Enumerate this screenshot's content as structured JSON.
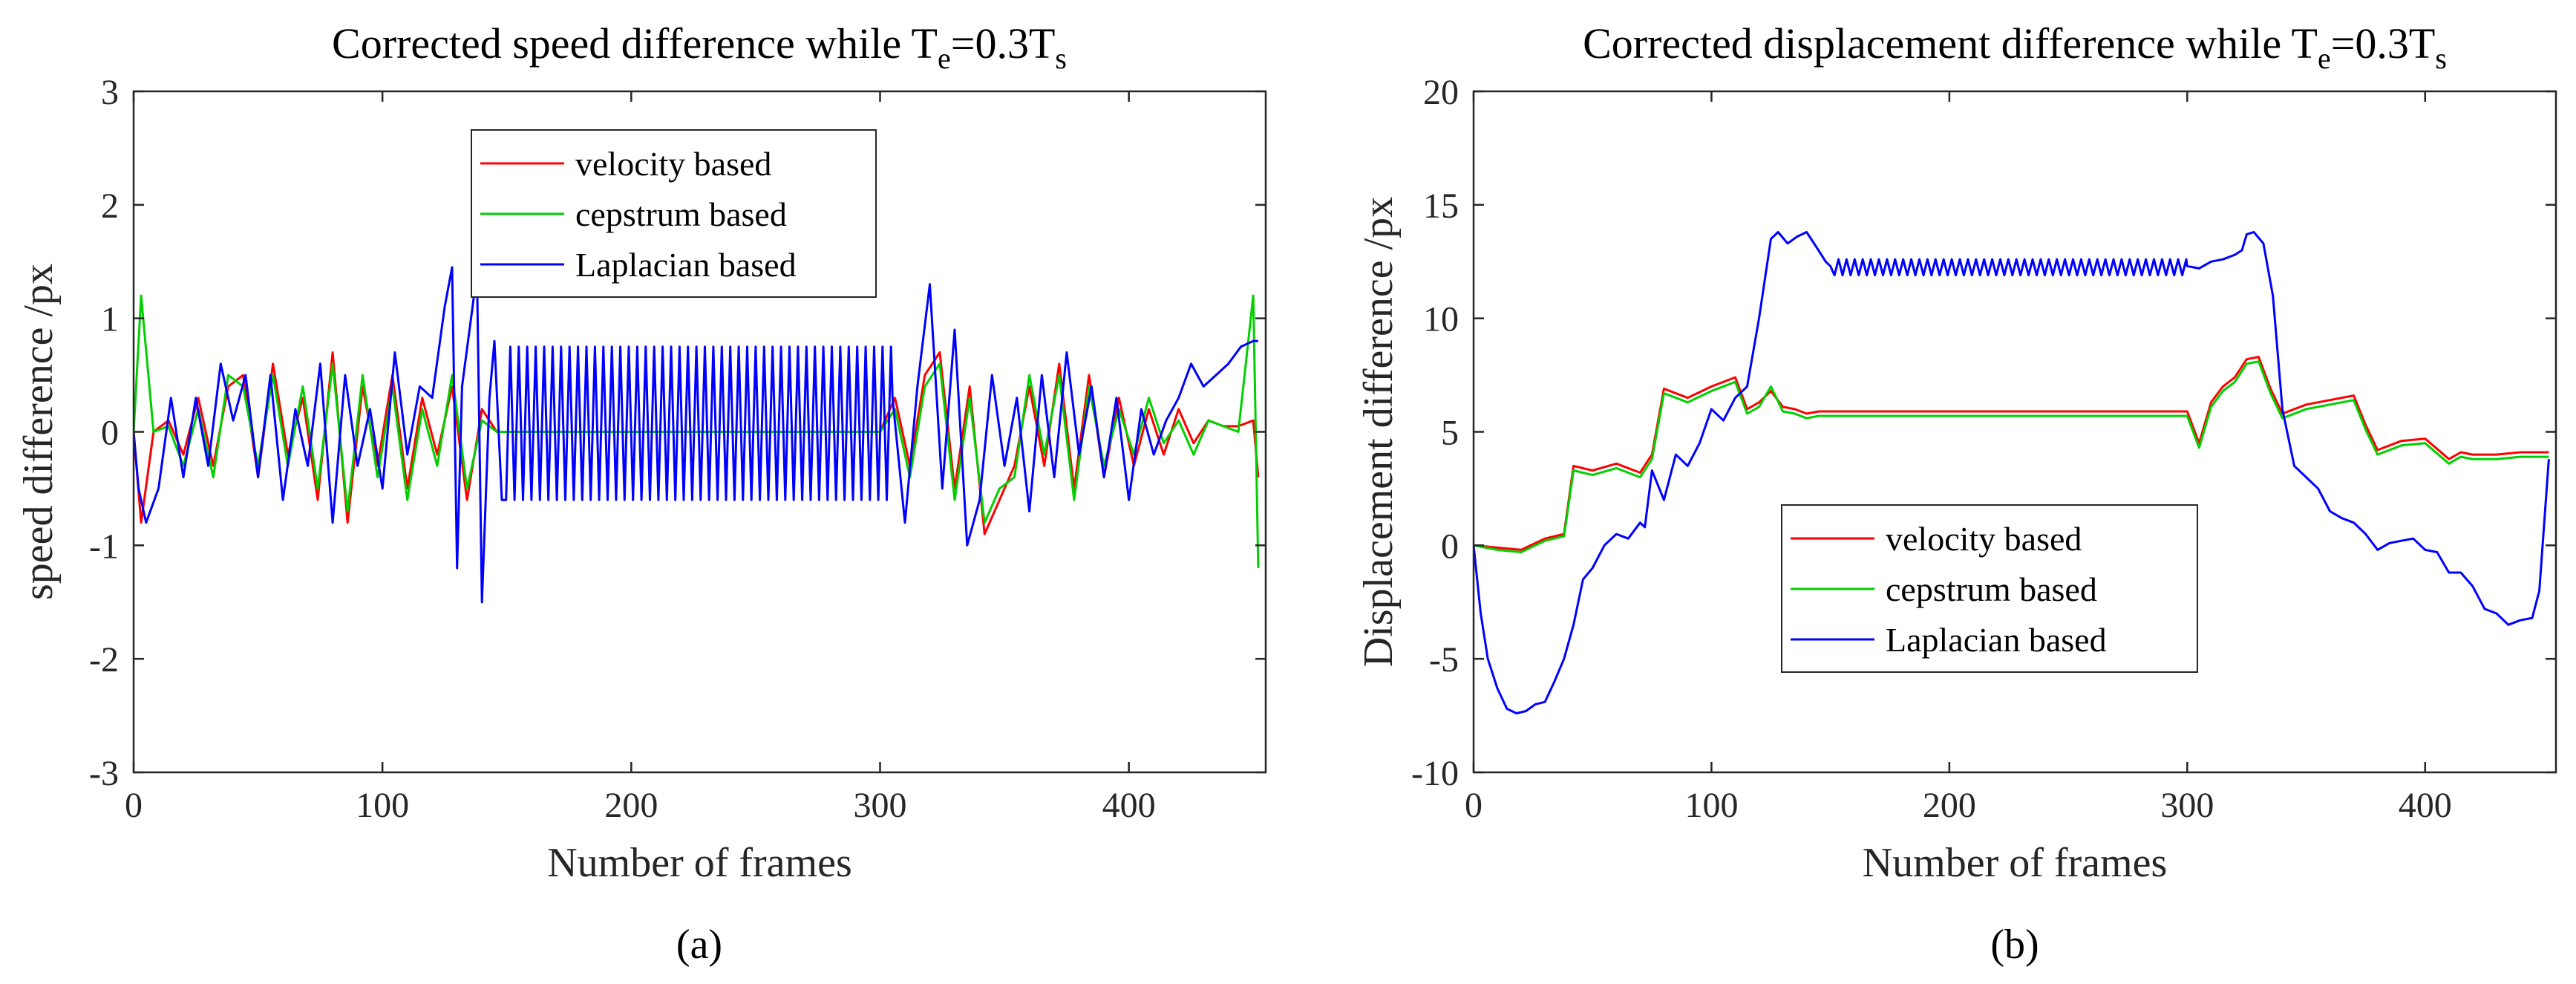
{
  "chart_data": [
    {
      "type": "line",
      "title": "Corrected speed difference while T",
      "title_sub1": "e",
      "title_mid": "=0.3T",
      "title_sub2": "s",
      "xlabel": "Number of frames",
      "ylabel": "speed difference /px",
      "caption": "(a)",
      "xlim": [
        0,
        455
      ],
      "ylim": [
        -3,
        3
      ],
      "xticks": [
        0,
        100,
        200,
        300,
        400
      ],
      "yticks": [
        -3,
        -2,
        -1,
        0,
        1,
        2,
        3
      ],
      "xtick_labels": [
        "0",
        "100",
        "200",
        "300",
        "400"
      ],
      "ytick_labels": [
        "-3",
        "-2",
        "-1",
        "0",
        "1",
        "2",
        "3"
      ],
      "legend_position": "top-center",
      "series": [
        {
          "name": "velocity based",
          "color": "#ff0000",
          "x": [
            0,
            3,
            8,
            14,
            20,
            26,
            32,
            38,
            44,
            50,
            56,
            62,
            68,
            74,
            80,
            86,
            92,
            98,
            104,
            110,
            116,
            122,
            128,
            134,
            140,
            146,
            200,
            260,
            300,
            306,
            312,
            318,
            324,
            330,
            336,
            342,
            348,
            354,
            360,
            366,
            372,
            378,
            384,
            390,
            396,
            402,
            408,
            414,
            420,
            426,
            432,
            438,
            444,
            450,
            452
          ],
          "y": [
            0,
            -0.8,
            0,
            0.1,
            -0.2,
            0.3,
            -0.3,
            0.4,
            0.5,
            -0.4,
            0.6,
            -0.2,
            0.3,
            -0.6,
            0.7,
            -0.8,
            0.4,
            -0.3,
            0.5,
            -0.5,
            0.3,
            -0.2,
            0.4,
            -0.6,
            0.2,
            0,
            0,
            0,
            0,
            0.3,
            -0.3,
            0.5,
            0.7,
            -0.5,
            0.4,
            -0.9,
            -0.6,
            -0.3,
            0.4,
            -0.3,
            0.6,
            -0.5,
            0.5,
            -0.4,
            0.3,
            -0.3,
            0.2,
            -0.2,
            0.2,
            -0.1,
            0.1,
            0.05,
            0.05,
            0.1,
            -0.4
          ]
        },
        {
          "name": "cepstrum based",
          "color": "#00d000",
          "x": [
            0,
            3,
            8,
            14,
            20,
            26,
            32,
            38,
            44,
            50,
            56,
            62,
            68,
            74,
            80,
            86,
            92,
            98,
            104,
            110,
            116,
            122,
            128,
            134,
            140,
            146,
            200,
            260,
            300,
            306,
            312,
            318,
            324,
            330,
            336,
            342,
            348,
            354,
            360,
            366,
            372,
            378,
            384,
            390,
            396,
            402,
            408,
            414,
            420,
            426,
            432,
            438,
            444,
            450,
            452
          ],
          "y": [
            0,
            1.2,
            0,
            0.05,
            -0.3,
            0.2,
            -0.4,
            0.5,
            0.4,
            -0.3,
            0.5,
            -0.3,
            0.4,
            -0.5,
            0.6,
            -0.7,
            0.5,
            -0.4,
            0.4,
            -0.6,
            0.2,
            -0.3,
            0.5,
            -0.5,
            0.1,
            0,
            0,
            0,
            0,
            0.2,
            -0.4,
            0.4,
            0.6,
            -0.6,
            0.3,
            -0.8,
            -0.5,
            -0.4,
            0.5,
            -0.2,
            0.5,
            -0.6,
            0.4,
            -0.3,
            0.2,
            -0.2,
            0.3,
            -0.1,
            0.1,
            -0.2,
            0.1,
            0.05,
            0,
            1.2,
            -1.2
          ]
        },
        {
          "name": "Laplacian based",
          "color": "#0000ff",
          "x": [
            0,
            2,
            5,
            10,
            15,
            20,
            25,
            30,
            35,
            40,
            45,
            50,
            55,
            60,
            65,
            70,
            75,
            80,
            85,
            90,
            95,
            100,
            105,
            110,
            115,
            120,
            125,
            128,
            130,
            132,
            135,
            138,
            140,
            143,
            145,
            148,
            300,
            305,
            310,
            315,
            320,
            325,
            330,
            335,
            340,
            345,
            350,
            355,
            360,
            365,
            370,
            375,
            380,
            385,
            390,
            395,
            400,
            405,
            410,
            415,
            420,
            425,
            430,
            435,
            440,
            445,
            450,
            452
          ],
          "y": [
            0,
            -0.5,
            -0.8,
            -0.5,
            0.3,
            -0.4,
            0.3,
            -0.3,
            0.6,
            0.1,
            0.5,
            -0.4,
            0.5,
            -0.6,
            0.2,
            -0.3,
            0.6,
            -0.8,
            0.5,
            -0.3,
            0.2,
            -0.5,
            0.7,
            -0.2,
            0.4,
            0.3,
            1.1,
            1.45,
            -1.2,
            0.4,
            0.9,
            1.4,
            -1.5,
            0.3,
            0.8,
            -0.6,
            0.8,
            0.3,
            -0.8,
            0.4,
            1.3,
            -0.5,
            0.9,
            -1.0,
            -0.6,
            0.5,
            -0.3,
            0.3,
            -0.7,
            0.5,
            -0.4,
            0.7,
            -0.2,
            0.4,
            -0.4,
            0.3,
            -0.6,
            0.2,
            -0.2,
            0.1,
            0.3,
            0.6,
            0.4,
            0.5,
            0.6,
            0.75,
            0.8,
            0.8
          ],
          "oscillation": {
            "x_start": 148,
            "x_end": 305,
            "amplitude_high": 0.75,
            "amplitude_low": -0.6,
            "period": 3.4
          }
        }
      ]
    },
    {
      "type": "line",
      "title": "Corrected displacement difference while T",
      "title_sub1": "e",
      "title_mid": "=0.3T",
      "title_sub2": "s",
      "xlabel": "Number of frames",
      "ylabel": "Displacement difference /px",
      "caption": "(b)",
      "xlim": [
        0,
        455
      ],
      "ylim": [
        -10,
        20
      ],
      "xticks": [
        0,
        100,
        200,
        300,
        400
      ],
      "yticks": [
        -10,
        -5,
        0,
        5,
        10,
        15,
        20
      ],
      "xtick_labels": [
        "0",
        "100",
        "200",
        "300",
        "400"
      ],
      "ytick_labels": [
        "-10",
        "-5",
        "0",
        "5",
        "10",
        "15",
        "20"
      ],
      "legend_position": "bottom-center",
      "series": [
        {
          "name": "velocity based",
          "color": "#ff0000",
          "x": [
            0,
            10,
            20,
            30,
            38,
            42,
            50,
            60,
            70,
            75,
            80,
            90,
            100,
            110,
            115,
            120,
            125,
            130,
            135,
            140,
            145,
            150,
            160,
            200,
            250,
            300,
            305,
            310,
            315,
            320,
            325,
            330,
            335,
            340,
            350,
            360,
            370,
            375,
            380,
            390,
            400,
            410,
            415,
            420,
            430,
            440,
            450,
            452
          ],
          "y": [
            0,
            -0.1,
            -0.2,
            0.3,
            0.5,
            3.5,
            3.3,
            3.6,
            3.2,
            4.0,
            6.9,
            6.5,
            7.0,
            7.4,
            6.0,
            6.3,
            6.8,
            6.1,
            6.0,
            5.8,
            5.9,
            5.9,
            5.9,
            5.9,
            5.9,
            5.9,
            4.5,
            6.3,
            7.0,
            7.4,
            8.2,
            8.3,
            6.9,
            5.8,
            6.2,
            6.4,
            6.6,
            5.3,
            4.2,
            4.6,
            4.7,
            3.8,
            4.1,
            4.0,
            4.0,
            4.1,
            4.1,
            4.1
          ]
        },
        {
          "name": "cepstrum based",
          "color": "#00d000",
          "x": [
            0,
            10,
            20,
            30,
            38,
            42,
            50,
            60,
            70,
            75,
            80,
            90,
            100,
            110,
            115,
            120,
            125,
            130,
            135,
            140,
            145,
            150,
            160,
            200,
            250,
            300,
            305,
            310,
            315,
            320,
            325,
            330,
            335,
            340,
            350,
            360,
            370,
            375,
            380,
            390,
            400,
            410,
            415,
            420,
            430,
            440,
            450,
            452
          ],
          "y": [
            0,
            -0.2,
            -0.3,
            0.2,
            0.4,
            3.3,
            3.1,
            3.4,
            3.0,
            3.8,
            6.7,
            6.3,
            6.8,
            7.2,
            5.8,
            6.1,
            7.0,
            5.9,
            5.8,
            5.6,
            5.7,
            5.7,
            5.7,
            5.7,
            5.7,
            5.7,
            4.3,
            6.1,
            6.8,
            7.2,
            8.0,
            8.1,
            6.7,
            5.6,
            6.0,
            6.2,
            6.4,
            5.1,
            4.0,
            4.4,
            4.5,
            3.6,
            3.9,
            3.8,
            3.8,
            3.9,
            3.9,
            3.9
          ]
        },
        {
          "name": "Laplacian based",
          "color": "#0000ff",
          "x": [
            0,
            3,
            6,
            10,
            14,
            18,
            22,
            26,
            30,
            34,
            38,
            42,
            46,
            50,
            55,
            60,
            65,
            70,
            72,
            75,
            80,
            85,
            90,
            95,
            100,
            105,
            110,
            115,
            120,
            125,
            128,
            132,
            136,
            140,
            145,
            148,
            150,
            300,
            305,
            310,
            315,
            320,
            323,
            325,
            328,
            332,
            336,
            340,
            345,
            350,
            355,
            360,
            365,
            370,
            375,
            380,
            385,
            390,
            395,
            400,
            405,
            410,
            415,
            420,
            425,
            430,
            435,
            440,
            445,
            448,
            452
          ],
          "y": [
            0,
            -3.0,
            -5.0,
            -6.3,
            -7.2,
            -7.4,
            -7.3,
            -7.0,
            -6.9,
            -6.0,
            -5.0,
            -3.5,
            -1.5,
            -1.0,
            0.0,
            0.5,
            0.3,
            1.0,
            0.8,
            3.3,
            2.0,
            4.0,
            3.5,
            4.5,
            6.0,
            5.5,
            6.5,
            7.0,
            10.0,
            13.5,
            13.8,
            13.3,
            13.6,
            13.8,
            13.0,
            12.5,
            12.3,
            12.3,
            12.2,
            12.5,
            12.6,
            12.8,
            13.0,
            13.7,
            13.8,
            13.3,
            11.0,
            6.0,
            3.5,
            3.0,
            2.5,
            1.5,
            1.2,
            1.0,
            0.5,
            -0.2,
            0.1,
            0.2,
            0.3,
            -0.2,
            -0.3,
            -1.2,
            -1.2,
            -1.8,
            -2.8,
            -3.0,
            -3.5,
            -3.3,
            -3.2,
            -2.0,
            3.8
          ],
          "oscillation": {
            "x_start": 150,
            "x_end": 300,
            "amplitude_high": 12.6,
            "amplitude_low": 11.9,
            "period": 3.4
          }
        }
      ]
    }
  ]
}
